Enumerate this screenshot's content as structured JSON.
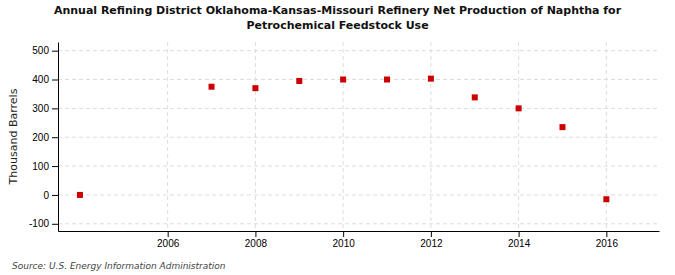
{
  "chart_data": {
    "type": "scatter",
    "title": [
      "Annual Refining District Oklahoma-Kansas-Missouri Refinery Net Production of Naphtha for",
      "Petrochemical Feedstock Use"
    ],
    "y_label": "Thousand Barrels",
    "annotations": [
      "Source: U.S. Energy Information Administration"
    ],
    "x": [
      2004,
      2007,
      2008,
      2009,
      2010,
      2011,
      2012,
      2013,
      2014,
      2015,
      2016
    ],
    "values": [
      0,
      375,
      370,
      395,
      400,
      400,
      403,
      338,
      300,
      235,
      -15
    ],
    "color": "#cc0000",
    "marker": "square",
    "xlim": [
      2003.5,
      2017.2
    ],
    "xticks": [
      2006,
      2008,
      2010,
      2012,
      2014,
      2016
    ],
    "ylim": [
      -125,
      530
    ],
    "yticks": [
      -100,
      0,
      100,
      200,
      300,
      400,
      500
    ],
    "grid": true
  }
}
